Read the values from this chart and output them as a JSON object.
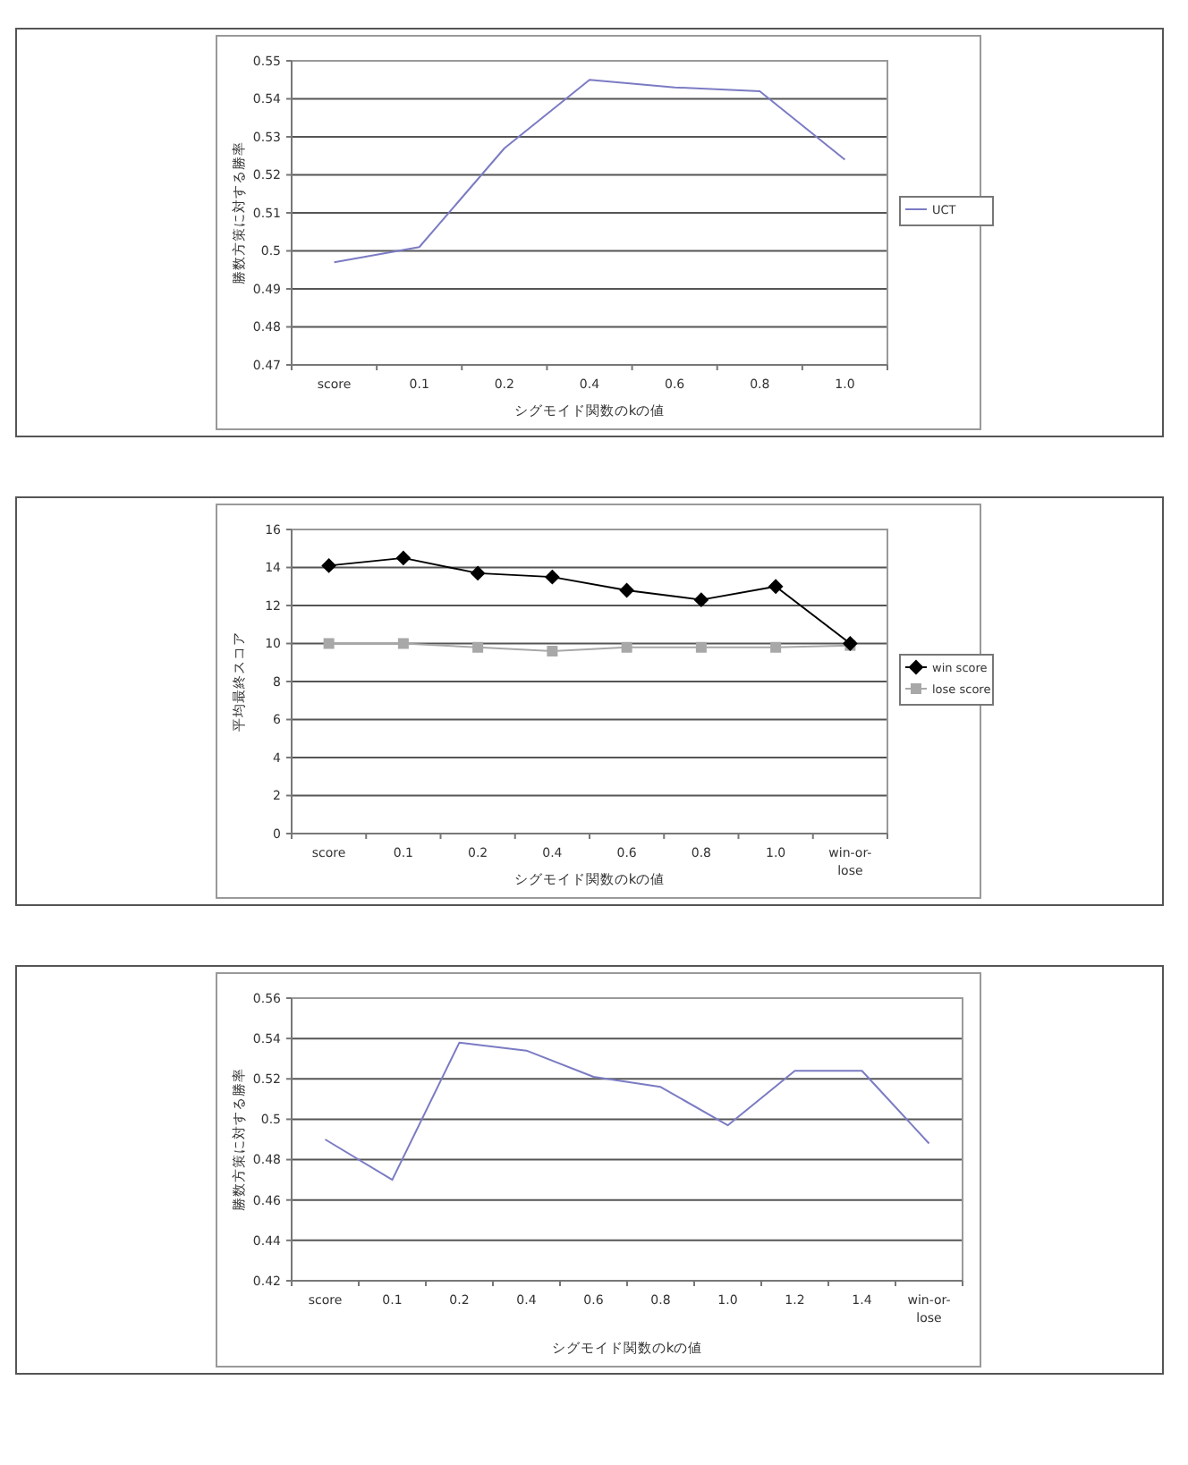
{
  "chart_data": [
    {
      "type": "line",
      "xlabel": "シグモイド関数のkの値",
      "ylabel": "勝数方策に対する勝率",
      "categories": [
        "score",
        "0.1",
        "0.2",
        "0.4",
        "0.6",
        "0.8",
        "1.0"
      ],
      "series": [
        {
          "name": "UCT",
          "color": "#7b7bc4",
          "values": [
            0.497,
            0.501,
            0.527,
            0.545,
            0.543,
            0.542,
            0.524
          ]
        }
      ],
      "ylim": [
        0.47,
        0.55
      ],
      "yticks": [
        0.47,
        0.48,
        0.49,
        0.5,
        0.51,
        0.52,
        0.53,
        0.54,
        0.55
      ],
      "grid": "y",
      "legend": "right"
    },
    {
      "type": "line",
      "xlabel": "シグモイド関数のkの値",
      "ylabel": "平均最終スコア",
      "categories": [
        "score",
        "0.1",
        "0.2",
        "0.4",
        "0.6",
        "0.8",
        "1.0",
        "win-or-lose"
      ],
      "series": [
        {
          "name": "win score",
          "color": "#000000",
          "marker": "diamond",
          "values": [
            14.1,
            14.5,
            13.7,
            13.5,
            12.8,
            12.3,
            13.0,
            10.0
          ]
        },
        {
          "name": "lose score",
          "color": "#a8a8a8",
          "marker": "square",
          "values": [
            10.0,
            10.0,
            9.8,
            9.6,
            9.8,
            9.8,
            9.8,
            9.9
          ]
        }
      ],
      "ylim": [
        0,
        16
      ],
      "yticks": [
        0,
        2,
        4,
        6,
        8,
        10,
        12,
        14,
        16
      ],
      "grid": "y",
      "legend": "right"
    },
    {
      "type": "line",
      "xlabel": "シグモイド関数のkの値",
      "ylabel": "勝数方策に対する勝率",
      "categories": [
        "score",
        "0.1",
        "0.2",
        "0.4",
        "0.6",
        "0.8",
        "1.0",
        "1.2",
        "1.4",
        "win-or-lose"
      ],
      "series": [
        {
          "color": "#7b7bc4",
          "values": [
            0.49,
            0.47,
            0.538,
            0.534,
            0.521,
            0.516,
            0.497,
            0.524,
            0.524,
            0.488
          ]
        }
      ],
      "ylim": [
        0.42,
        0.56
      ],
      "yticks": [
        0.42,
        0.44,
        0.46,
        0.48,
        0.5,
        0.52,
        0.54,
        0.56
      ],
      "grid": "y"
    }
  ]
}
